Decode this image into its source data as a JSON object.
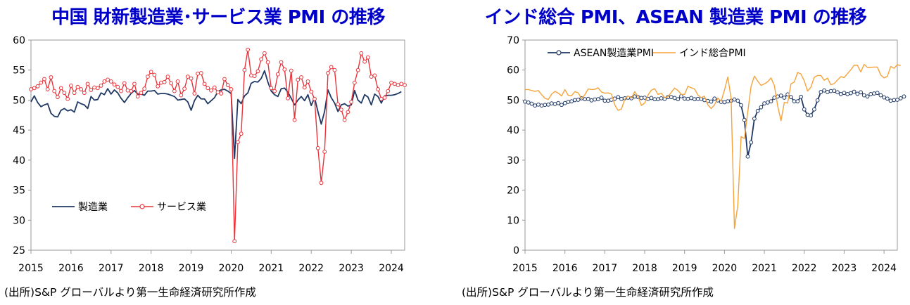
{
  "charts": [
    {
      "title": "中国 財新製造業･サービス業 PMI の推移",
      "source": "(出所)S&P グローバルより第一生命経済研究所作成"
    },
    {
      "title": "インド総合 PMI、ASEAN 製造業 PMI の推移",
      "source": "(出所)S&P グローバルより第一生命経済研究所作成"
    }
  ],
  "chart_data": [
    {
      "type": "line",
      "title": "中国 財新製造業･サービス業 PMI の推移",
      "xlabel": "",
      "ylabel": "",
      "x_start": "2015-01",
      "x_tick_labels": [
        "2015",
        "2016",
        "2017",
        "2018",
        "2019",
        "2020",
        "2021",
        "2022",
        "2023",
        "2024"
      ],
      "y_ticks": [
        25,
        30,
        35,
        40,
        45,
        50,
        55,
        60
      ],
      "ylim": [
        25,
        60
      ],
      "xlim": [
        "2015-01",
        "2024-05"
      ],
      "grid": false,
      "legend": "bottom-left",
      "series": [
        {
          "name": "製造業",
          "color": "#1f3864",
          "marker": "none",
          "values": [
            49.7,
            50.7,
            49.6,
            48.9,
            49.2,
            49.4,
            47.8,
            47.3,
            47.2,
            48.3,
            48.6,
            48.2,
            48.4,
            48.0,
            49.7,
            49.4,
            49.2,
            48.6,
            50.6,
            50.0,
            50.1,
            51.2,
            50.9,
            51.9,
            51.0,
            51.7,
            51.2,
            50.3,
            49.6,
            50.4,
            51.1,
            51.6,
            51.0,
            51.0,
            50.8,
            51.5,
            51.5,
            51.6,
            51.0,
            51.1,
            51.1,
            51.0,
            50.8,
            50.6,
            50.0,
            50.1,
            50.2,
            49.7,
            48.3,
            49.9,
            50.8,
            50.2,
            50.2,
            49.4,
            49.9,
            50.4,
            51.4,
            51.7,
            51.8,
            51.5,
            51.1,
            40.3,
            50.1,
            49.4,
            50.7,
            51.2,
            52.8,
            53.1,
            53.0,
            53.6,
            54.9,
            53.0,
            51.5,
            50.9,
            50.6,
            51.9,
            52.0,
            51.3,
            50.3,
            49.2,
            50.0,
            50.6,
            49.9,
            50.9,
            49.1,
            50.4,
            48.1,
            46.0,
            48.1,
            51.7,
            50.4,
            49.5,
            48.1,
            49.2,
            49.4,
            49.0,
            49.2,
            51.6,
            50.0,
            49.5,
            50.9,
            50.5,
            49.2,
            51.0,
            50.6,
            49.5,
            50.7,
            50.8,
            50.8,
            50.9,
            51.1,
            51.4
          ]
        },
        {
          "name": "サービス業",
          "color": "#e8333a",
          "marker": "circle",
          "values": [
            51.8,
            52.0,
            52.3,
            52.9,
            53.5,
            51.8,
            53.8,
            51.5,
            50.5,
            52.0,
            51.2,
            50.2,
            52.4,
            51.2,
            52.2,
            51.8,
            51.2,
            52.7,
            51.7,
            52.1,
            52.0,
            52.4,
            53.1,
            53.4,
            53.1,
            52.6,
            52.2,
            51.5,
            52.8,
            51.6,
            51.5,
            52.7,
            50.6,
            51.2,
            51.9,
            53.9,
            54.7,
            54.2,
            52.3,
            52.9,
            53.0,
            53.9,
            52.8,
            51.5,
            53.1,
            50.8,
            51.9,
            53.9,
            53.6,
            51.1,
            54.4,
            54.5,
            52.7,
            52.0,
            51.6,
            52.1,
            51.3,
            51.1,
            53.5,
            52.5,
            51.8,
            26.5,
            43.0,
            44.4,
            55.0,
            58.4,
            54.1,
            54.0,
            54.8,
            56.8,
            57.8,
            56.3,
            52.0,
            51.5,
            54.3,
            56.3,
            55.1,
            50.3,
            54.9,
            46.7,
            53.4,
            53.8,
            52.1,
            53.1,
            51.4,
            50.2,
            42.0,
            36.2,
            41.4,
            54.5,
            55.5,
            55.0,
            49.3,
            48.4,
            46.7,
            48.0,
            49.7,
            52.9,
            55.0,
            57.8,
            56.4,
            57.1,
            53.9,
            54.1,
            51.8,
            50.2,
            50.4,
            51.5,
            52.9,
            52.7,
            52.5,
            52.7,
            52.5
          ]
        }
      ]
    },
    {
      "type": "line",
      "title": "インド総合 PMI、ASEAN 製造業 PMI の推移",
      "xlabel": "",
      "ylabel": "",
      "x_start": "2015-01",
      "x_tick_labels": [
        "2015",
        "2016",
        "2017",
        "2018",
        "2019",
        "2020",
        "2021",
        "2022",
        "2023",
        "2024"
      ],
      "y_ticks": [
        0,
        10,
        20,
        30,
        40,
        50,
        60,
        70
      ],
      "ylim": [
        0,
        70
      ],
      "xlim": [
        "2015-01",
        "2024-05"
      ],
      "grid": false,
      "legend": "top-left",
      "series": [
        {
          "name": "ASEAN製造業PMI",
          "color": "#1f3864",
          "marker": "circle",
          "values": [
            49.5,
            49.2,
            48.8,
            48.2,
            48.5,
            48.2,
            48.4,
            48.5,
            48.9,
            48.7,
            49.0,
            48.4,
            49.0,
            49.4,
            49.6,
            50.0,
            50.1,
            50.6,
            50.3,
            50.4,
            49.9,
            50.2,
            50.3,
            50.8,
            49.8,
            49.8,
            50.1,
            50.5,
            51.0,
            50.4,
            50.6,
            50.8,
            50.6,
            51.2,
            51.0,
            50.7,
            50.8,
            50.4,
            50.7,
            50.3,
            50.3,
            50.6,
            50.4,
            51.0,
            51.0,
            50.7,
            50.3,
            51.3,
            50.5,
            50.4,
            50.7,
            50.3,
            50.4,
            50.4,
            50.0,
            49.7,
            49.5,
            50.5,
            49.9,
            49.4,
            49.3,
            49.6,
            49.8,
            50.2,
            49.8,
            48.3,
            43.4,
            31.2,
            35.9,
            43.8,
            46.4,
            47.6,
            48.9,
            49.2,
            49.6,
            50.8,
            51.2,
            51.5,
            50.8,
            51.9,
            51.0,
            49.6,
            49.6,
            51.1,
            46.9,
            45.1,
            44.9,
            46.9,
            49.9,
            52.7,
            53.2,
            52.7,
            53.0,
            53.1,
            52.6,
            52.0,
            52.4,
            52.0,
            52.3,
            52.8,
            52.1,
            52.6,
            51.6,
            51.2,
            52.0,
            52.2,
            52.4,
            51.6,
            50.9,
            50.5,
            49.8,
            50.0,
            50.1,
            50.6,
            51.2
          ]
        },
        {
          "name": "インド総合PMI",
          "color": "#f5a33a",
          "marker": "none",
          "values": [
            53.5,
            53.5,
            53.2,
            52.9,
            53.2,
            51.8,
            50.6,
            50.2,
            52.0,
            52.9,
            52.3,
            51.4,
            53.5,
            51.6,
            51.5,
            52.8,
            52.4,
            50.5,
            51.8,
            53.7,
            53.5,
            53.6,
            54.1,
            52.7,
            52.3,
            52.4,
            52.0,
            48.4,
            46.6,
            47.0,
            50.3,
            51.4,
            50.7,
            52.8,
            51.2,
            48.2,
            49.0,
            51.7,
            53.3,
            53.8,
            51.9,
            52.3,
            50.8,
            51.1,
            52.6,
            54.0,
            53.2,
            51.9,
            51.9,
            54.6,
            54.1,
            53.7,
            51.7,
            50.8,
            51.3,
            48.4,
            47.2,
            48.4,
            50.7,
            49.6,
            53.3,
            57.7,
            50.6,
            7.2,
            14.8,
            37.8,
            37.2,
            46.0,
            54.6,
            58.0,
            56.3,
            54.9,
            55.4,
            56.1,
            57.4,
            54.9,
            48.1,
            43.1,
            49.2,
            49.0,
            55.4,
            56.0,
            59.2,
            58.7,
            56.4,
            53.0,
            54.3,
            57.6,
            58.2,
            58.2,
            56.6,
            57.3,
            55.1,
            55.5,
            56.7,
            57.8,
            57.5,
            58.8,
            60.1,
            61.6,
            61.6,
            59.4,
            61.9,
            60.9,
            60.9,
            61.0,
            61.0,
            58.4,
            57.4,
            57.9,
            61.2,
            60.6,
            61.8,
            61.5
          ]
        }
      ]
    }
  ]
}
